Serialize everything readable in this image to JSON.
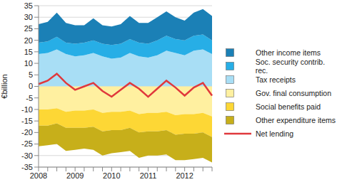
{
  "chart_data": {
    "type": "area",
    "stacked": true,
    "grid": true,
    "legend": "right",
    "y_label": "€billion",
    "categories": [
      "2008",
      null,
      null,
      null,
      "2009",
      null,
      null,
      null,
      "2010",
      null,
      null,
      null,
      "2011",
      null,
      null,
      null,
      "2012",
      null,
      null,
      null
    ],
    "ylim": [
      -35,
      35
    ],
    "yticks": [
      -35,
      -30,
      -25,
      -20,
      -15,
      -10,
      -5,
      0,
      5,
      10,
      15,
      20,
      25,
      30,
      35
    ],
    "series": [
      {
        "name": "Other income items",
        "color": "#1b80b6",
        "type": "area",
        "values": [
          8,
          8.5,
          10.5,
          8.5,
          8,
          7.5,
          9.5,
          8,
          8,
          8.5,
          10,
          8.5,
          9,
          10,
          10.5,
          9.5,
          8.5,
          10,
          11,
          10.5
        ]
      },
      {
        "name": "Soc. security contrib. rec.",
        "color": "#27aee6",
        "type": "area",
        "values": [
          5,
          5,
          5.5,
          5,
          5.5,
          5.5,
          5.5,
          5.5,
          6,
          6,
          6,
          6,
          6,
          6.5,
          6.5,
          6,
          6.5,
          6.5,
          6.5,
          6
        ]
      },
      {
        "name": "Tax receipts",
        "color": "#a8def5",
        "type": "area",
        "values": [
          14,
          14.5,
          16,
          14,
          13,
          13.5,
          14.5,
          13,
          12,
          12.5,
          14.5,
          13,
          12.5,
          13.5,
          15.5,
          14.5,
          13.5,
          15.5,
          16,
          14
        ]
      },
      {
        "name": "Gov. final consumption",
        "color": "#fff0a0",
        "type": "area",
        "values": [
          -10,
          -10,
          -9.5,
          -11,
          -10.5,
          -10.5,
          -10,
          -11.5,
          -11,
          -11,
          -10.5,
          -12,
          -11.5,
          -11.5,
          -11,
          -12.5,
          -12,
          -12,
          -11.5,
          -13
        ]
      },
      {
        "name": "Social benefits paid",
        "color": "#fdd735",
        "type": "area",
        "values": [
          -7,
          -7,
          -6.5,
          -7,
          -7.5,
          -7.5,
          -7.5,
          -8,
          -8,
          -8,
          -7.5,
          -8,
          -8,
          -8,
          -8,
          -8.5,
          -8.5,
          -8.5,
          -8.5,
          -9
        ]
      },
      {
        "name": "Other expenditure items",
        "color": "#c7af1a",
        "type": "area",
        "values": [
          -9,
          -8.5,
          -9,
          -10,
          -9.5,
          -9,
          -10,
          -10.5,
          -10,
          -9.5,
          -10,
          -11,
          -10.5,
          -10.5,
          -10.5,
          -11,
          -11.5,
          -11,
          -11,
          -11
        ]
      },
      {
        "name": "Net lending",
        "color": "#e0383c",
        "type": "line",
        "values": [
          1,
          2.5,
          5.5,
          1.5,
          -1.5,
          0,
          1.5,
          -2,
          -4.5,
          -1.5,
          1.5,
          -1,
          -4.5,
          -1,
          2.5,
          -0.5,
          -4,
          -0.5,
          1.5,
          -4
        ]
      }
    ]
  }
}
